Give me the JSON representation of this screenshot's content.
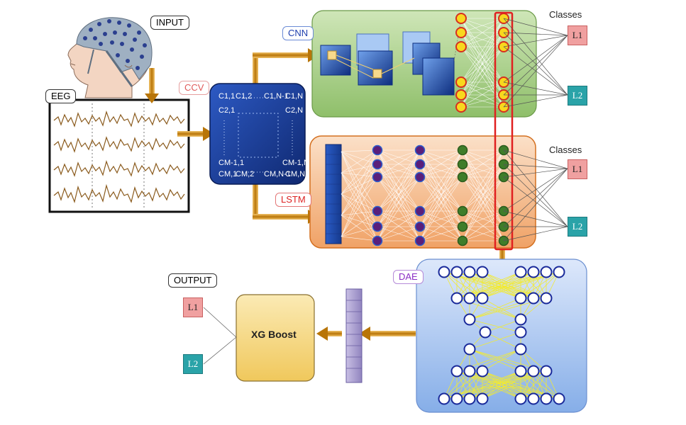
{
  "labels": {
    "input": "INPUT",
    "eeg": "EEG",
    "ccv": "CCV",
    "cnn": "CNN",
    "lstm": "LSTM",
    "dae": "DAE",
    "output": "OUTPUT",
    "classes_top": "Classes",
    "classes_bottom": "Classes",
    "xgboost": "XG Boost"
  },
  "ccv_matrix": {
    "c11": "C1,1",
    "c12": "C1,2",
    "c1n1": "C1,N-1",
    "c1n": "C1,N",
    "c21": "C2,1",
    "c2n": "C2,N",
    "cm11": "CM-1,1",
    "cm1n": "CM-1,N",
    "cm1": "CM,1",
    "cm2": "CM,2",
    "cmn1": "CM,N-1",
    "cmn": "CM,N"
  },
  "class_boxes": {
    "l1": "L1",
    "l2": "L2"
  },
  "colors": {
    "cnn_panel": "#a9cf8c",
    "lstm_panel": "#f2b183",
    "dae_panel": "#a8c4ee",
    "ccv_block": "#1f3f9f",
    "xgboost_box": "#f6dc8e",
    "arrow": "#c8860b",
    "highlight": "#e02020"
  }
}
